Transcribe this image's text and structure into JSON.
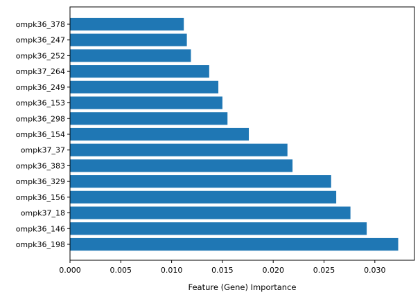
{
  "chart_data": {
    "type": "bar",
    "orientation": "horizontal",
    "categories": [
      "ompk36_198",
      "ompk36_146",
      "ompk37_18",
      "ompk36_156",
      "ompk36_329",
      "ompk36_383",
      "ompk37_37",
      "ompk36_154",
      "ompk36_298",
      "ompk36_153",
      "ompk36_249",
      "ompk37_264",
      "ompk36_252",
      "ompk36_247",
      "ompk36_378"
    ],
    "values": [
      0.0323,
      0.0292,
      0.0276,
      0.0262,
      0.0257,
      0.0219,
      0.0214,
      0.0176,
      0.0155,
      0.015,
      0.0146,
      0.0137,
      0.0119,
      0.0115,
      0.0112
    ],
    "title": "",
    "xlabel": "Feature (Gene) Importance",
    "ylabel": "",
    "xlim": [
      0,
      0.0339
    ],
    "xticks": [
      "0.000",
      "0.005",
      "0.010",
      "0.015",
      "0.020",
      "0.025",
      "0.030"
    ],
    "xtick_values": [
      0,
      0.005,
      0.01,
      0.015,
      0.02,
      0.025,
      0.03
    ],
    "bar_color": "#1f77b4",
    "grid": false,
    "legend": "none"
  }
}
